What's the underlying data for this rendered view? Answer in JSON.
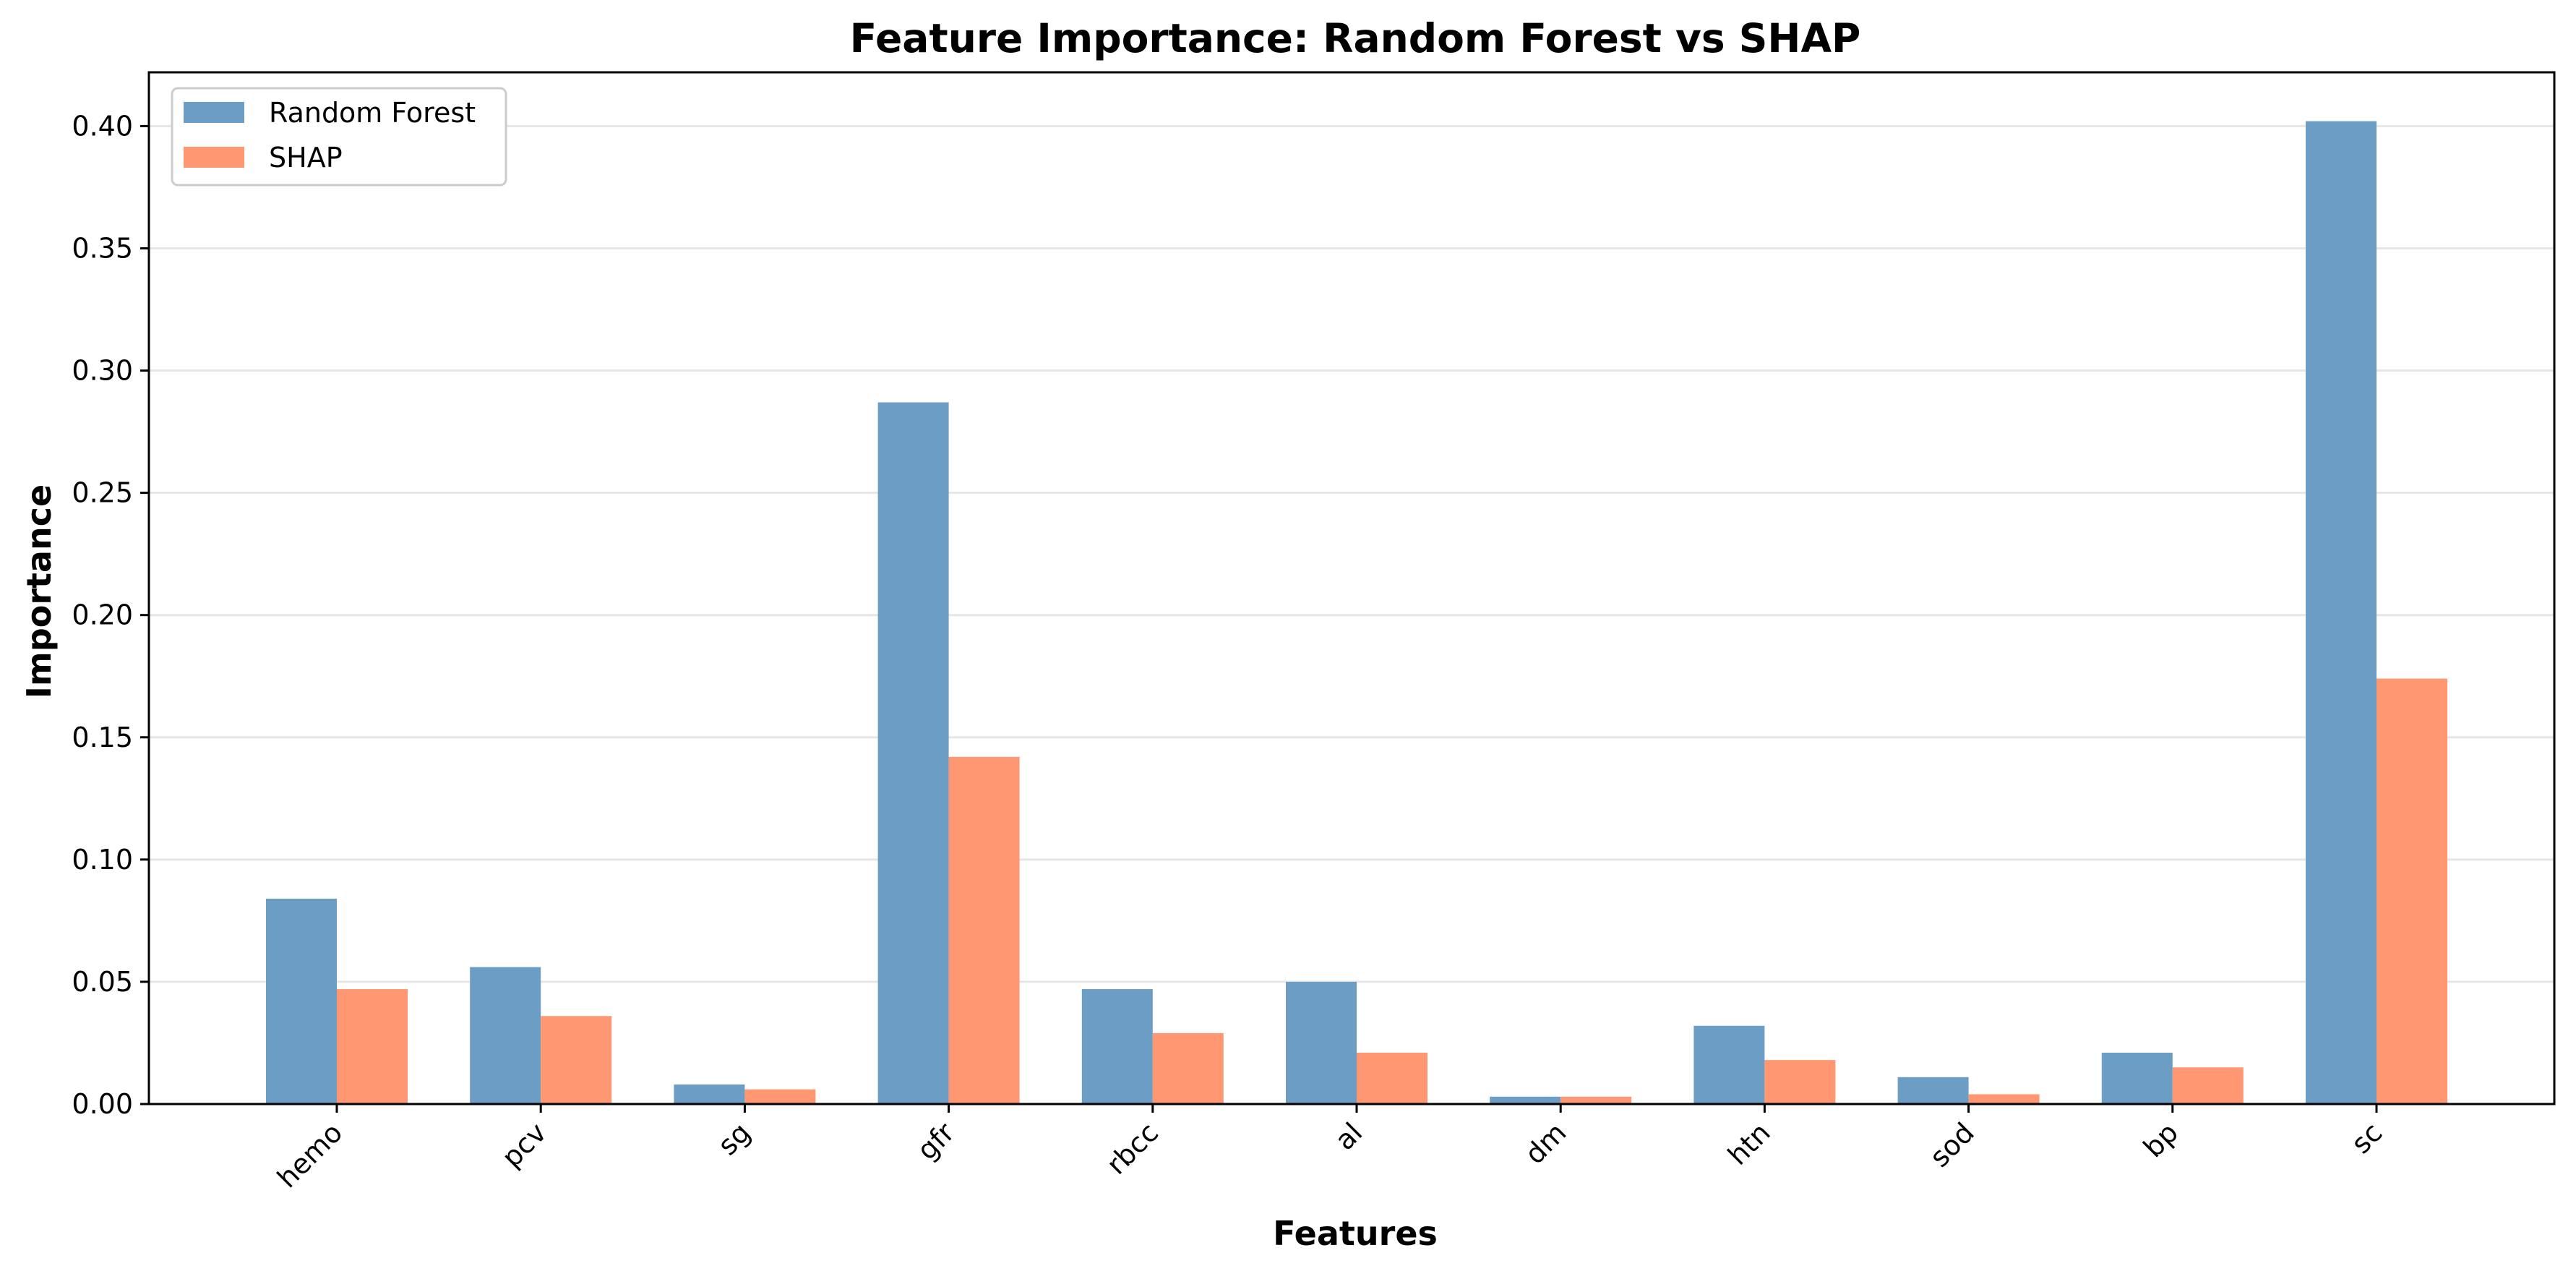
{
  "chart_data": {
    "type": "bar",
    "title": "Feature Importance: Random Forest vs SHAP",
    "xlabel": "Features",
    "ylabel": "Importance",
    "categories": [
      "hemo",
      "pcv",
      "sg",
      "gfr",
      "rbcc",
      "al",
      "dm",
      "htn",
      "sod",
      "bp",
      "sc"
    ],
    "series": [
      {
        "name": "Random Forest",
        "color": "#6b9dc5",
        "values": [
          0.084,
          0.056,
          0.008,
          0.287,
          0.047,
          0.05,
          0.003,
          0.032,
          0.011,
          0.021,
          0.402
        ]
      },
      {
        "name": "SHAP",
        "color": "#ff9872",
        "values": [
          0.047,
          0.036,
          0.006,
          0.142,
          0.029,
          0.021,
          0.003,
          0.018,
          0.004,
          0.015,
          0.174
        ]
      }
    ],
    "ylim": [
      0,
      0.422
    ],
    "yticks": [
      "0.00",
      "0.05",
      "0.10",
      "0.15",
      "0.20",
      "0.25",
      "0.30",
      "0.35",
      "0.40"
    ],
    "grid": "y-major",
    "legend_position": "top-left"
  }
}
